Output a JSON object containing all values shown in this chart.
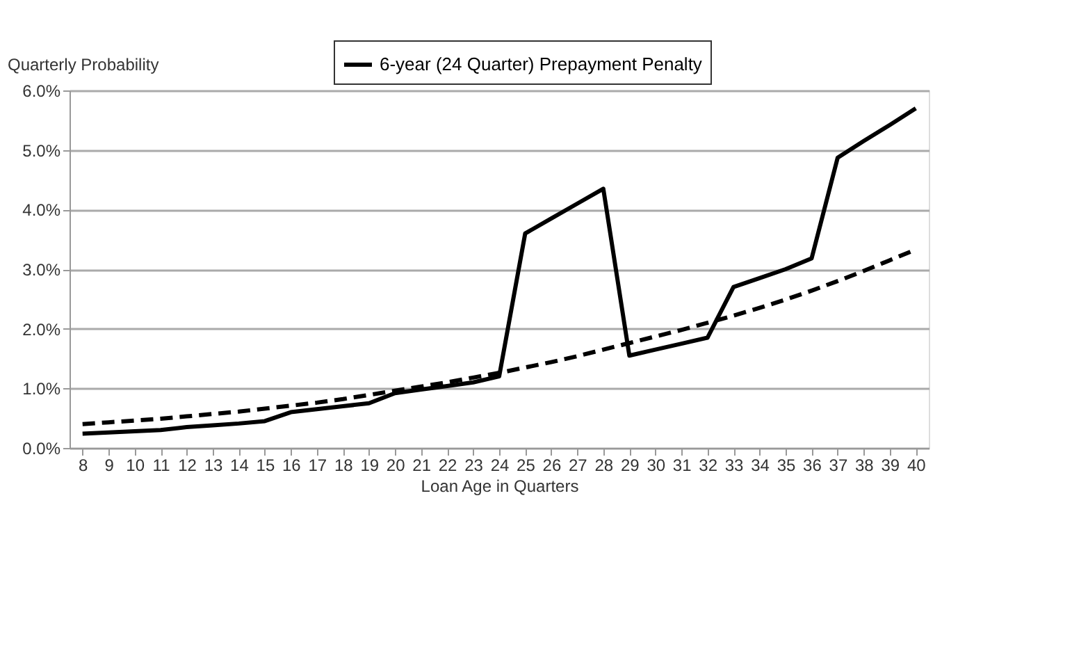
{
  "chart_data": {
    "type": "line",
    "xlabel": "Loan Age in Quarters",
    "ylabel": "Quarterly Probability",
    "categories": [
      "8",
      "9",
      "10",
      "11",
      "12",
      "13",
      "14",
      "15",
      "16",
      "17",
      "18",
      "19",
      "20",
      "21",
      "22",
      "23",
      "24",
      "25",
      "26",
      "27",
      "28",
      "29",
      "30",
      "31",
      "32",
      "33",
      "34",
      "35",
      "36",
      "37",
      "38",
      "39",
      "40"
    ],
    "series": [
      {
        "name": "6-year (24 Quarter) Prepayment Penalty",
        "color": "#000000",
        "line_style": "solid",
        "values": [
          0.24,
          0.26,
          0.28,
          0.3,
          0.35,
          0.38,
          0.41,
          0.45,
          0.6,
          0.65,
          0.7,
          0.75,
          0.92,
          0.98,
          1.04,
          1.1,
          1.2,
          3.6,
          3.85,
          4.1,
          4.35,
          1.55,
          1.65,
          1.75,
          1.85,
          2.7,
          2.85,
          3.0,
          3.18,
          4.87,
          5.15,
          5.42,
          5.7
        ]
      },
      {
        "color": "#000000",
        "line_style": "dashed",
        "values": [
          0.4,
          0.43,
          0.46,
          0.49,
          0.53,
          0.57,
          0.61,
          0.66,
          0.71,
          0.76,
          0.82,
          0.89,
          0.96,
          1.03,
          1.1,
          1.18,
          1.26,
          1.35,
          1.44,
          1.54,
          1.65,
          1.76,
          1.87,
          1.98,
          2.1,
          2.22,
          2.35,
          2.49,
          2.64,
          2.8,
          2.97,
          3.15,
          3.33
        ]
      }
    ],
    "ylim": [
      0,
      6
    ],
    "yticks": [
      {
        "value": 0,
        "label": "0.0%"
      },
      {
        "value": 1,
        "label": "1.0%"
      },
      {
        "value": 2,
        "label": "2.0%"
      },
      {
        "value": 3,
        "label": "3.0%"
      },
      {
        "value": 4,
        "label": "4.0%"
      },
      {
        "value": 5,
        "label": "5.0%"
      },
      {
        "value": 6,
        "label": "6.0%"
      }
    ],
    "grid": "y",
    "legend": "top",
    "marker": "none"
  }
}
